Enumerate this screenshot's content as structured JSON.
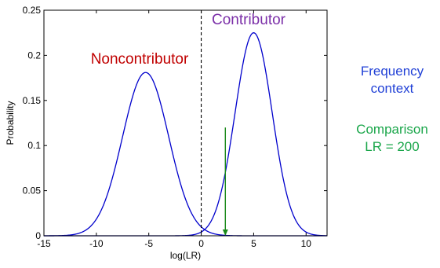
{
  "chart_data": {
    "type": "line",
    "xlabel": "log(LR)",
    "ylabel": "Probability",
    "xlim": [
      -15,
      12
    ],
    "ylim": [
      0,
      0.25
    ],
    "xticks": [
      -15,
      -10,
      -5,
      0,
      5,
      10
    ],
    "yticks": [
      0,
      0.05,
      0.1,
      0.15,
      0.2,
      0.25
    ],
    "grid": false,
    "series": [
      {
        "name": "Noncontributor",
        "distribution": "normal",
        "mean": -5.3,
        "sd": 2.2,
        "peak": 0.181,
        "color": "#0000cc",
        "label_color": "#c00000"
      },
      {
        "name": "Contributor",
        "distribution": "normal",
        "mean": 5.0,
        "sd": 1.77,
        "peak": 0.225,
        "color": "#0000cc",
        "label_color": "#7b2fa8"
      }
    ],
    "threshold_line": {
      "x": 0,
      "style": "dashed",
      "color": "#000000"
    },
    "comparison_arrow": {
      "x": 2.3,
      "y_from": 0.12,
      "y_to": 0,
      "color": "#1a8a1a"
    },
    "annotations": [
      {
        "text": "Frequency context",
        "lines": [
          "Frequency",
          "context"
        ],
        "color": "#1f3fd6"
      },
      {
        "text": "Comparison LR = 200",
        "lines": [
          "Comparison",
          "LR = 200"
        ],
        "color": "#1aa64a"
      }
    ]
  }
}
